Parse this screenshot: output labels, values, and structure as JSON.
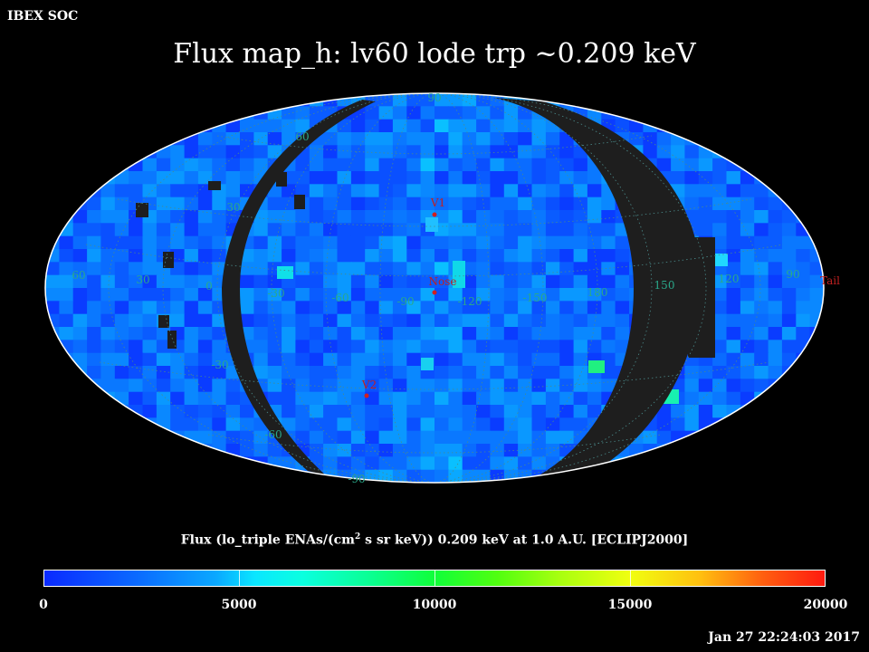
{
  "header": {
    "corner_label": "IBEX SOC",
    "title": "Flux   map_h: lv60 lode trp ~0.209 keV"
  },
  "map": {
    "type": "mollweide-sky-map",
    "frame": "ECLIPJ2000",
    "lon_labels": [
      "60",
      "30",
      "0",
      "-30",
      "-60",
      "-90",
      "-120",
      "-150",
      "180",
      "150",
      "120",
      "90"
    ],
    "lat_labels": {
      "north_pole": "90",
      "n60": "60",
      "n30": "30",
      "s30": "-30",
      "s60": "-60",
      "south_pole": "-90"
    },
    "markers": [
      {
        "name": "V1",
        "color": "#d02020"
      },
      {
        "name": "Nose",
        "color": "#d02020"
      },
      {
        "name": "V2",
        "color": "#d02020"
      },
      {
        "name": "Tail",
        "color": "#d02020"
      }
    ],
    "colors": {
      "no_data": "#1e1e1e",
      "grid": "#4a8a8a",
      "label_green": "#2aa88a",
      "label_red": "#c02020",
      "outline": "#ffffff"
    }
  },
  "colorbar": {
    "title_pre": "Flux (lo_triple ENAs/(cm",
    "title_sup": "2",
    "title_post": " s sr keV))  0.209 keV at 1.0 A.U. [ECLIPJ2000]",
    "ticks": [
      0,
      5000,
      10000,
      15000,
      20000
    ],
    "tick_labels": [
      "0",
      "5000",
      "10000",
      "15000",
      "20000"
    ],
    "range": [
      0,
      20000
    ]
  },
  "footer": {
    "timestamp": "Jan 27 22:24:03 2017"
  }
}
